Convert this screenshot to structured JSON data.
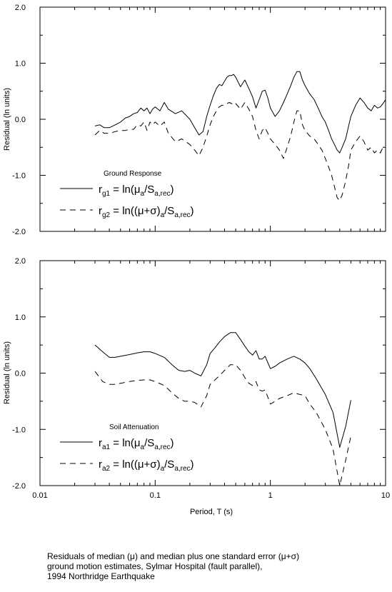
{
  "chart_data": [
    {
      "type": "line",
      "xscale": "log",
      "xlim": [
        0.01,
        10
      ],
      "ylim": [
        -2.0,
        2.0
      ],
      "xlabel": "",
      "ylabel": "Residual (ln units)",
      "ytick_labels": [
        "2.0",
        "1.0",
        "0.0",
        "-1.0",
        "-2.0"
      ],
      "legend_title": "Ground Response",
      "series": [
        {
          "name": "rg1 = ln(μa/Sa,rec)",
          "style": "solid",
          "x": [
            0.03,
            0.033,
            0.036,
            0.04,
            0.045,
            0.05,
            0.055,
            0.06,
            0.065,
            0.07,
            0.075,
            0.08,
            0.085,
            0.09,
            0.095,
            0.1,
            0.11,
            0.12,
            0.13,
            0.15,
            0.17,
            0.2,
            0.22,
            0.24,
            0.26,
            0.28,
            0.3,
            0.32,
            0.34,
            0.36,
            0.38,
            0.4,
            0.42,
            0.44,
            0.46,
            0.48,
            0.5,
            0.55,
            0.6,
            0.65,
            0.7,
            0.75,
            0.8,
            0.85,
            0.9,
            0.95,
            1.0,
            1.1,
            1.2,
            1.3,
            1.4,
            1.5,
            1.6,
            1.7,
            1.8,
            1.9,
            2.0,
            2.2,
            2.4,
            2.6,
            2.8,
            3.0,
            3.2,
            3.4,
            3.6,
            3.8,
            4.0,
            4.2,
            4.5,
            4.8,
            5.0,
            5.5,
            6.0,
            6.5,
            7.0,
            7.5,
            8.0,
            8.5,
            9.0,
            9.5,
            10.0
          ],
          "y": [
            -0.12,
            -0.1,
            -0.15,
            -0.15,
            -0.1,
            -0.05,
            0.02,
            0.05,
            0.1,
            0.12,
            0.2,
            0.15,
            0.2,
            0.1,
            0.18,
            0.22,
            0.15,
            0.3,
            0.18,
            0.1,
            0.15,
            0.0,
            -0.15,
            -0.28,
            -0.22,
            0.05,
            0.25,
            0.42,
            0.55,
            0.62,
            0.6,
            0.68,
            0.75,
            0.78,
            0.78,
            0.8,
            0.75,
            0.58,
            0.7,
            0.55,
            0.4,
            0.2,
            0.35,
            0.5,
            0.52,
            0.38,
            0.2,
            0.05,
            0.15,
            0.3,
            0.45,
            0.6,
            0.75,
            0.85,
            0.85,
            0.7,
            0.6,
            0.45,
            0.35,
            0.2,
            0.05,
            -0.05,
            -0.2,
            -0.35,
            -0.45,
            -0.55,
            -0.6,
            -0.5,
            -0.35,
            -0.1,
            0.05,
            0.25,
            0.38,
            0.3,
            0.2,
            0.15,
            0.25,
            0.2,
            0.22,
            0.28,
            0.35
          ]
        },
        {
          "name": "rg2 = ln((μ+σ)a/Sa,rec)",
          "style": "dashed",
          "x": [
            0.03,
            0.033,
            0.036,
            0.04,
            0.045,
            0.05,
            0.055,
            0.06,
            0.065,
            0.07,
            0.075,
            0.08,
            0.085,
            0.09,
            0.095,
            0.1,
            0.11,
            0.12,
            0.13,
            0.15,
            0.17,
            0.2,
            0.22,
            0.24,
            0.26,
            0.28,
            0.3,
            0.32,
            0.34,
            0.36,
            0.38,
            0.4,
            0.42,
            0.44,
            0.46,
            0.48,
            0.5,
            0.55,
            0.6,
            0.65,
            0.7,
            0.75,
            0.8,
            0.85,
            0.9,
            0.95,
            1.0,
            1.1,
            1.2,
            1.3,
            1.4,
            1.5,
            1.6,
            1.7,
            1.8,
            1.9,
            2.0,
            2.2,
            2.4,
            2.6,
            2.8,
            3.0,
            3.2,
            3.4,
            3.6,
            3.8,
            4.0,
            4.2,
            4.5,
            4.8,
            5.0,
            5.5,
            6.0,
            6.5,
            7.0,
            7.5,
            8.0,
            8.5,
            9.0,
            9.5,
            10.0
          ],
          "y": [
            -0.28,
            -0.2,
            -0.25,
            -0.25,
            -0.22,
            -0.2,
            -0.2,
            -0.18,
            -0.18,
            -0.1,
            -0.12,
            -0.05,
            -0.2,
            -0.05,
            -0.1,
            -0.05,
            -0.12,
            -0.05,
            -0.25,
            -0.4,
            -0.35,
            -0.45,
            -0.55,
            -0.65,
            -0.5,
            -0.3,
            -0.1,
            0.05,
            0.15,
            0.22,
            0.25,
            0.25,
            0.28,
            0.3,
            0.28,
            0.25,
            0.28,
            0.18,
            0.3,
            0.18,
            0.05,
            -0.2,
            -0.35,
            -0.2,
            -0.15,
            -0.25,
            -0.35,
            -0.45,
            -0.55,
            -0.7,
            -0.5,
            -0.3,
            -0.05,
            0.15,
            0.15,
            -0.1,
            -0.2,
            -0.3,
            -0.35,
            -0.45,
            -0.55,
            -0.7,
            -0.85,
            -1.0,
            -1.2,
            -1.4,
            -1.45,
            -1.35,
            -1.1,
            -0.8,
            -0.55,
            -0.4,
            -0.3,
            -0.4,
            -0.55,
            -0.5,
            -0.6,
            -0.55,
            -0.6,
            -0.5,
            -0.52
          ]
        }
      ]
    },
    {
      "type": "line",
      "xscale": "log",
      "xlim": [
        0.01,
        10
      ],
      "ylim": [
        -2.0,
        2.0
      ],
      "xlabel": "Period, T (s)",
      "ylabel": "Residual (ln units)",
      "xtick_labels": [
        "0.01",
        "0.1",
        "1",
        "10"
      ],
      "ytick_labels": [
        "2.0",
        "1.0",
        "0.0",
        "-1.0",
        "-2.0"
      ],
      "legend_title": "Soil Attenuation",
      "series": [
        {
          "name": "ra1 = ln(μa/Sa,rec)",
          "style": "solid",
          "x": [
            0.03,
            0.035,
            0.04,
            0.045,
            0.05,
            0.06,
            0.07,
            0.08,
            0.09,
            0.1,
            0.12,
            0.14,
            0.16,
            0.18,
            0.2,
            0.22,
            0.25,
            0.28,
            0.3,
            0.33,
            0.36,
            0.4,
            0.45,
            0.5,
            0.55,
            0.6,
            0.65,
            0.7,
            0.75,
            0.8,
            0.85,
            0.9,
            1.0,
            1.1,
            1.2,
            1.4,
            1.6,
            1.8,
            2.0,
            2.2,
            2.5,
            3.0,
            3.5,
            4.0,
            4.5,
            5.0
          ],
          "y": [
            0.5,
            0.38,
            0.28,
            0.28,
            0.3,
            0.33,
            0.36,
            0.38,
            0.38,
            0.35,
            0.28,
            0.15,
            0.05,
            0.03,
            0.05,
            0.0,
            -0.05,
            0.15,
            0.35,
            0.45,
            0.55,
            0.65,
            0.72,
            0.72,
            0.6,
            0.48,
            0.38,
            0.32,
            0.4,
            0.25,
            0.25,
            0.3,
            0.08,
            0.12,
            0.18,
            0.25,
            0.3,
            0.25,
            0.18,
            0.08,
            -0.1,
            -0.38,
            -0.7,
            -1.32,
            -0.95,
            -0.48
          ]
        },
        {
          "name": "ra2 = ln((μ+σ)a/Sa,rec)",
          "style": "dashed",
          "x": [
            0.03,
            0.035,
            0.04,
            0.045,
            0.05,
            0.06,
            0.07,
            0.08,
            0.09,
            0.1,
            0.12,
            0.14,
            0.16,
            0.18,
            0.2,
            0.22,
            0.25,
            0.28,
            0.3,
            0.33,
            0.36,
            0.4,
            0.45,
            0.5,
            0.55,
            0.6,
            0.65,
            0.7,
            0.75,
            0.8,
            0.85,
            0.9,
            1.0,
            1.1,
            1.2,
            1.4,
            1.6,
            1.8,
            2.0,
            2.2,
            2.5,
            3.0,
            3.5,
            4.0,
            4.5,
            5.0
          ],
          "y": [
            0.03,
            -0.15,
            -0.2,
            -0.2,
            -0.18,
            -0.15,
            -0.13,
            -0.12,
            -0.12,
            -0.15,
            -0.22,
            -0.35,
            -0.45,
            -0.5,
            -0.5,
            -0.52,
            -0.6,
            -0.4,
            -0.2,
            -0.12,
            -0.05,
            0.05,
            0.15,
            0.15,
            0.05,
            -0.08,
            -0.18,
            -0.22,
            -0.15,
            -0.3,
            -0.32,
            -0.3,
            -0.55,
            -0.5,
            -0.45,
            -0.4,
            -0.35,
            -0.38,
            -0.4,
            -0.55,
            -0.7,
            -1.0,
            -1.35,
            -2.0,
            -1.55,
            -1.12
          ]
        }
      ]
    }
  ],
  "legend_math": [
    {
      "lead": "r",
      "sub1": "g1",
      "eq": " = ln(",
      "mu": "μ",
      "sub2": "a",
      "tail": "/S",
      "sub3": "a,rec",
      "close": ")"
    },
    {
      "lead": "r",
      "sub1": "g2",
      "eq": " = ln((",
      "mu": "μ+σ",
      "mid": ")",
      "sub2": "a",
      "tail": "/S",
      "sub3": "a,rec",
      "close": ")"
    },
    {
      "lead": "r",
      "sub1": "a1",
      "eq": " = ln(",
      "mu": "μ",
      "sub2": "a",
      "tail": "/S",
      "sub3": "a,rec",
      "close": ")"
    },
    {
      "lead": "r",
      "sub1": "a2",
      "eq": " = ln((",
      "mu": "μ+σ",
      "mid": ")",
      "sub2": "a",
      "tail": "/S",
      "sub3": "a,rec",
      "close": ")"
    }
  ],
  "caption": [
    "Residuals of median (μ) and median plus one standard error (μ+σ)",
    "ground motion estimates, Sylmar Hospital (fault parallel),",
    "1994 Northridge Earthquake"
  ]
}
